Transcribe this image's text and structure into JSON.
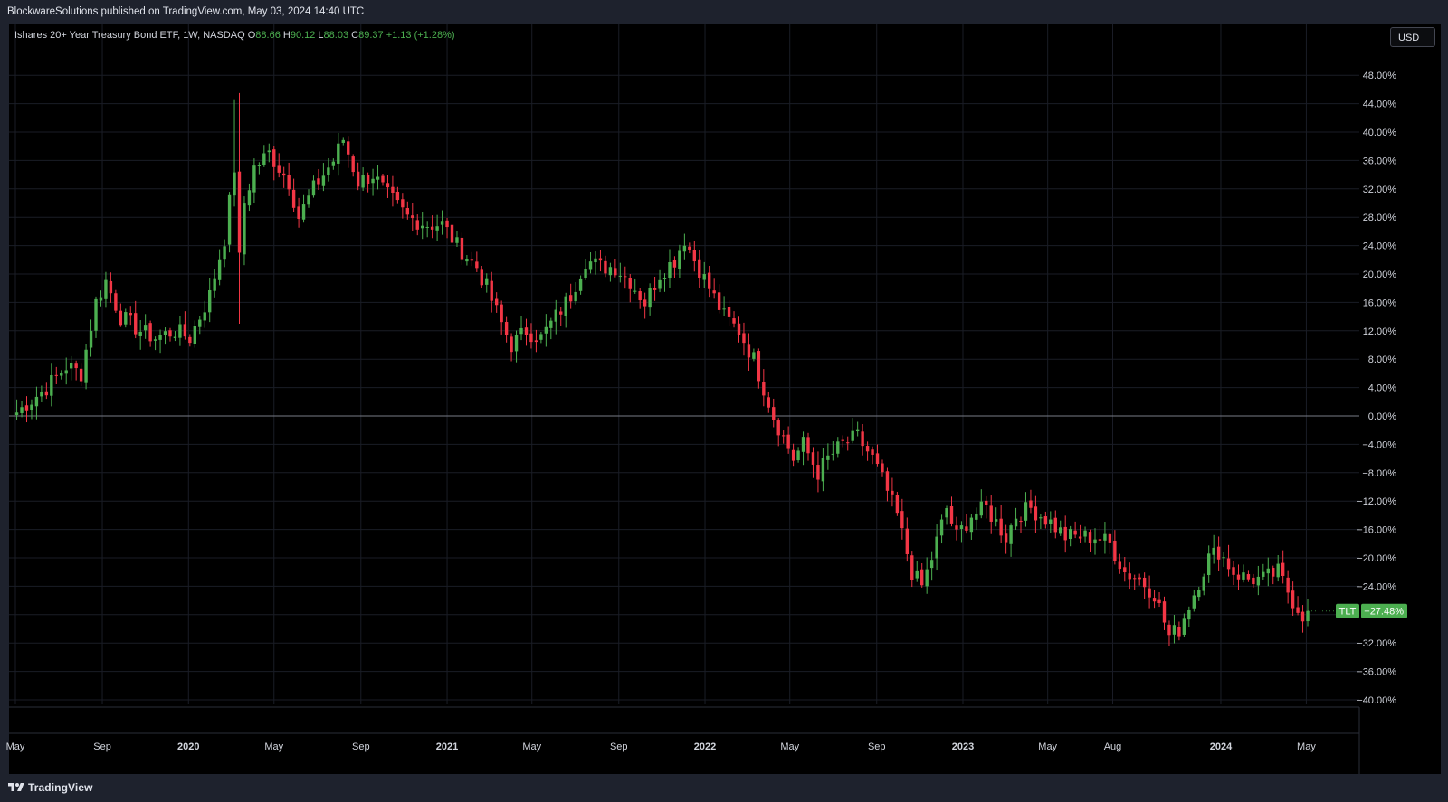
{
  "header": {
    "published_text": "BlockwareSolutions published on TradingView.com, May 03, 2024 14:40 UTC"
  },
  "legend": {
    "symbol_title": "Ishares 20+ Year Treasury Bond ETF, 1W, NASDAQ",
    "open_label": "O",
    "open_value": "88.66",
    "high_label": "H",
    "high_value": "90.12",
    "low_label": "L",
    "low_value": "88.03",
    "close_label": "C",
    "close_value": "89.37",
    "change_value": "+1.13 (+1.28%)"
  },
  "currency_button": {
    "label": "USD"
  },
  "last_price_tag": {
    "symbol": "TLT",
    "value": "−27.48%"
  },
  "footer": {
    "brand": "TradingView"
  },
  "colors": {
    "up": "#4caf50",
    "down": "#f23645",
    "background": "#000000",
    "frame": "#1e222d",
    "grid": "#1a1d26",
    "zero_line": "#787b86",
    "axis_text": "#d1d4dc"
  },
  "chart_data": {
    "type": "candlestick",
    "symbol": "TLT",
    "interval": "1W",
    "exchange": "NASDAQ",
    "value_unit": "percent change",
    "y_scale": "percent",
    "ylim": [
      -40,
      48
    ],
    "yticks": [
      48,
      44,
      40,
      36,
      32,
      28,
      24,
      20,
      16,
      12,
      8,
      4,
      0,
      -4,
      -8,
      -12,
      -16,
      -20,
      -24,
      -28,
      -32,
      -36,
      -40
    ],
    "ytick_labels": [
      "48.00%",
      "44.00%",
      "40.00%",
      "36.00%",
      "32.00%",
      "28.00%",
      "24.00%",
      "20.00%",
      "16.00%",
      "12.00%",
      "8.00%",
      "4.00%",
      "0.00%",
      "−4.00%",
      "−8.00%",
      "−12.00%",
      "−16.00%",
      "−20.00%",
      "−24.00%",
      "",
      "−32.00%",
      "−36.00%",
      "−40.00%"
    ],
    "x_tick_labels": [
      "May",
      "Sep",
      "2020",
      "May",
      "Sep",
      "2021",
      "May",
      "Sep",
      "2022",
      "May",
      "Sep",
      "2023",
      "May",
      "Aug",
      "2024",
      "May"
    ],
    "x_tick_dates": [
      "2019-05-01",
      "2019-09-01",
      "2020-01-01",
      "2020-05-01",
      "2020-09-01",
      "2021-01-01",
      "2021-05-01",
      "2021-09-01",
      "2022-01-01",
      "2022-05-01",
      "2022-09-01",
      "2023-01-01",
      "2023-05-01",
      "2023-08-01",
      "2024-01-01",
      "2024-05-01"
    ],
    "x_start": "2019-05-01",
    "x_end": "2024-05-03",
    "weeks": 262,
    "grid": true,
    "zero_line": true,
    "closes_anchors": [
      [
        "2019-05-03",
        0.5
      ],
      [
        "2019-06-14",
        4
      ],
      [
        "2019-07-12",
        7
      ],
      [
        "2019-08-02",
        6
      ],
      [
        "2019-08-23",
        16
      ],
      [
        "2019-09-06",
        19
      ],
      [
        "2019-09-27",
        14
      ],
      [
        "2019-10-25",
        12
      ],
      [
        "2019-11-15",
        11
      ],
      [
        "2019-12-13",
        12
      ],
      [
        "2020-01-03",
        11
      ],
      [
        "2020-01-31",
        17
      ],
      [
        "2020-02-21",
        25
      ],
      [
        "2020-03-06",
        35
      ],
      [
        "2020-03-13",
        22
      ],
      [
        "2020-03-20",
        30
      ],
      [
        "2020-04-03",
        35
      ],
      [
        "2020-04-24",
        37
      ],
      [
        "2020-05-22",
        33
      ],
      [
        "2020-06-05",
        28
      ],
      [
        "2020-06-26",
        32
      ],
      [
        "2020-07-24",
        36
      ],
      [
        "2020-08-07",
        39
      ],
      [
        "2020-08-28",
        33
      ],
      [
        "2020-09-18",
        34
      ],
      [
        "2020-10-09",
        31
      ],
      [
        "2020-11-06",
        28
      ],
      [
        "2020-12-04",
        27
      ],
      [
        "2020-12-25",
        27
      ],
      [
        "2021-01-15",
        24
      ],
      [
        "2021-02-12",
        21
      ],
      [
        "2021-02-26",
        18
      ],
      [
        "2021-03-19",
        13
      ],
      [
        "2021-04-02",
        10
      ],
      [
        "2021-04-23",
        12
      ],
      [
        "2021-05-14",
        11
      ],
      [
        "2021-06-04",
        14
      ],
      [
        "2021-06-25",
        17
      ],
      [
        "2021-07-16",
        22
      ],
      [
        "2021-08-06",
        21
      ],
      [
        "2021-08-27",
        21
      ],
      [
        "2021-09-17",
        19
      ],
      [
        "2021-10-08",
        16
      ],
      [
        "2021-10-29",
        20
      ],
      [
        "2021-11-19",
        22
      ],
      [
        "2021-12-03",
        25
      ],
      [
        "2021-12-17",
        22
      ],
      [
        "2022-01-07",
        18
      ],
      [
        "2022-01-28",
        14
      ],
      [
        "2022-02-18",
        12
      ],
      [
        "2022-03-11",
        8
      ],
      [
        "2022-03-25",
        4
      ],
      [
        "2022-04-08",
        0
      ],
      [
        "2022-04-22",
        -3
      ],
      [
        "2022-05-06",
        -6
      ],
      [
        "2022-05-20",
        -4
      ],
      [
        "2022-06-10",
        -8
      ],
      [
        "2022-06-24",
        -6
      ],
      [
        "2022-07-15",
        -4
      ],
      [
        "2022-08-05",
        -3
      ],
      [
        "2022-08-26",
        -6
      ],
      [
        "2022-09-09",
        -9
      ],
      [
        "2022-09-30",
        -14
      ],
      [
        "2022-10-21",
        -22
      ],
      [
        "2022-11-04",
        -24
      ],
      [
        "2022-11-18",
        -20
      ],
      [
        "2022-12-09",
        -13
      ],
      [
        "2022-12-23",
        -17
      ],
      [
        "2023-01-13",
        -14
      ],
      [
        "2023-02-03",
        -13
      ],
      [
        "2023-03-03",
        -17
      ],
      [
        "2023-03-17",
        -14
      ],
      [
        "2023-04-07",
        -13
      ],
      [
        "2023-05-05",
        -15
      ],
      [
        "2023-05-26",
        -17
      ],
      [
        "2023-06-16",
        -17
      ],
      [
        "2023-07-07",
        -17
      ],
      [
        "2023-07-28",
        -18
      ],
      [
        "2023-08-18",
        -22
      ],
      [
        "2023-09-08",
        -23
      ],
      [
        "2023-09-29",
        -25
      ],
      [
        "2023-10-20",
        -31
      ],
      [
        "2023-11-03",
        -30
      ],
      [
        "2023-11-24",
        -25
      ],
      [
        "2023-12-15",
        -20
      ],
      [
        "2023-12-29",
        -19
      ],
      [
        "2024-01-19",
        -22
      ],
      [
        "2024-02-09",
        -23
      ],
      [
        "2024-03-01",
        -23
      ],
      [
        "2024-03-22",
        -22
      ],
      [
        "2024-04-12",
        -26
      ],
      [
        "2024-04-26",
        -28
      ],
      [
        "2024-05-03",
        -27.48
      ]
    ]
  }
}
